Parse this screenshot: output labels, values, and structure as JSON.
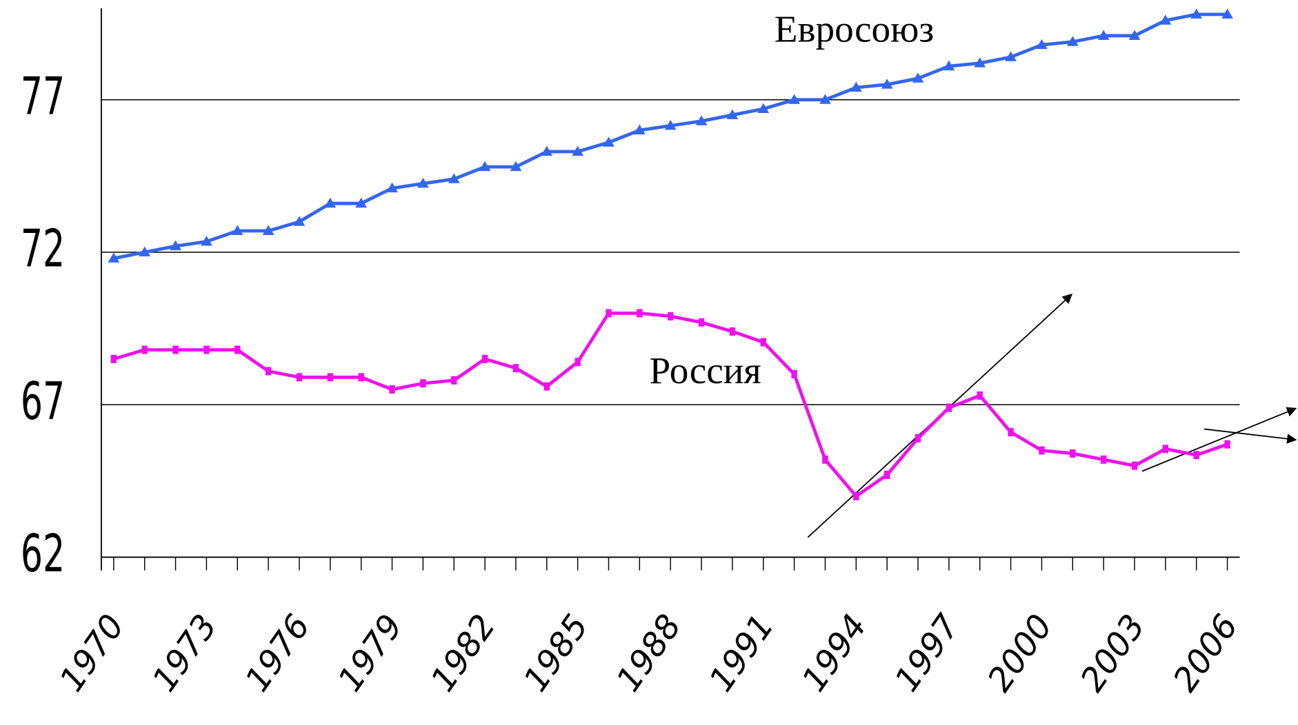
{
  "chart_data": {
    "type": "line",
    "x": [
      1970,
      1971,
      1972,
      1973,
      1974,
      1975,
      1976,
      1977,
      1978,
      1979,
      1980,
      1981,
      1982,
      1983,
      1984,
      1985,
      1986,
      1987,
      1988,
      1989,
      1990,
      1991,
      1992,
      1993,
      1994,
      1995,
      1996,
      1997,
      1998,
      1999,
      2000,
      2001,
      2002,
      2003,
      2004,
      2005,
      2006
    ],
    "xlim": [
      1969.6,
      2006.4
    ],
    "xticks": [
      1970,
      1973,
      1976,
      1979,
      1982,
      1985,
      1988,
      1991,
      1994,
      1997,
      2000,
      2003,
      2006
    ],
    "ylim": [
      62,
      80
    ],
    "yticks": [
      62,
      67,
      72,
      77
    ],
    "grid": true,
    "series": [
      {
        "name": "Евросоюз",
        "color": "#3366ee",
        "marker": "triangle",
        "values": [
          71.8,
          72.0,
          72.2,
          72.35,
          72.7,
          72.7,
          73.0,
          73.6,
          73.6,
          74.1,
          74.25,
          74.4,
          74.8,
          74.8,
          75.3,
          75.3,
          75.6,
          76.0,
          76.15,
          76.3,
          76.5,
          76.7,
          77.0,
          77.0,
          77.4,
          77.5,
          77.7,
          78.1,
          78.2,
          78.4,
          78.8,
          78.9,
          79.1,
          79.1,
          79.6,
          79.8,
          79.8
        ]
      },
      {
        "name": "Россия",
        "color": "#ee11ee",
        "marker": "square",
        "values": [
          68.5,
          68.8,
          68.8,
          68.8,
          68.8,
          68.1,
          67.9,
          67.9,
          67.9,
          67.5,
          67.7,
          67.8,
          68.5,
          68.2,
          67.6,
          68.4,
          70.0,
          70.0,
          69.9,
          69.7,
          69.4,
          69.05,
          68.0,
          65.2,
          64.0,
          64.7,
          65.9,
          66.9,
          67.3,
          66.1,
          65.5,
          65.4,
          65.2,
          65.0,
          65.55,
          65.35,
          65.7
        ]
      }
    ]
  }
}
